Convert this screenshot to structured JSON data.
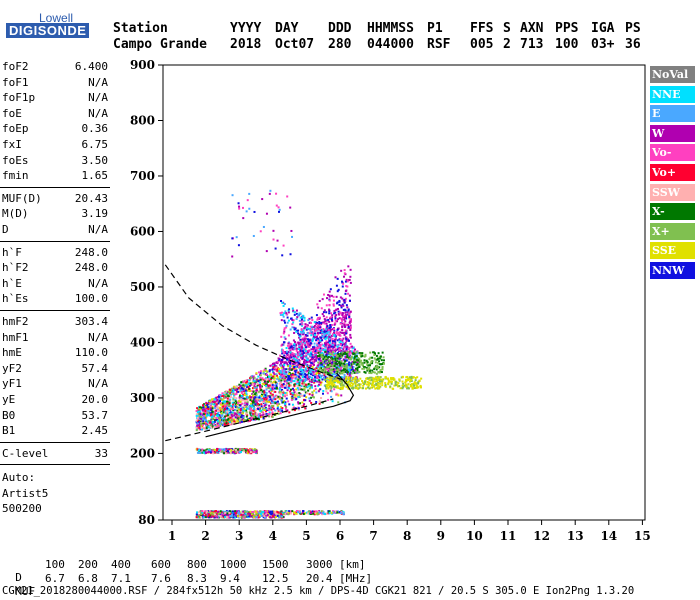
{
  "logo": {
    "brand": "Lowell",
    "product": "DIGISONDE"
  },
  "header": {
    "station_label": "Station",
    "station_name": "Campo Grande",
    "columns": [
      {
        "label": "YYYY",
        "value": "2018"
      },
      {
        "label": "DAY",
        "value": "Oct07"
      },
      {
        "label": "DDD",
        "value": "280"
      },
      {
        "label": "HHMMSS",
        "value": "044000"
      },
      {
        "label": "P1",
        "value": "RSF"
      },
      {
        "label": "FFS",
        "value": "005"
      },
      {
        "label": "S",
        "value": "2"
      },
      {
        "label": "AXN",
        "value": "713"
      },
      {
        "label": "PPS",
        "value": "100"
      },
      {
        "label": "IGA",
        "value": "03+"
      },
      {
        "label": "PS",
        "value": "36"
      }
    ]
  },
  "params_group1": [
    {
      "name": "foF2",
      "value": "6.400"
    },
    {
      "name": "foF1",
      "value": "N/A"
    },
    {
      "name": "foF1p",
      "value": "N/A"
    },
    {
      "name": "foE",
      "value": "N/A"
    },
    {
      "name": "foEp",
      "value": "0.36"
    },
    {
      "name": "fxI",
      "value": "6.75"
    },
    {
      "name": "foEs",
      "value": "3.50"
    },
    {
      "name": "fmin",
      "value": "1.65"
    }
  ],
  "params_group2": [
    {
      "name": "MUF(D)",
      "value": "20.43"
    },
    {
      "name": "M(D)",
      "value": "3.19"
    },
    {
      "name": "D",
      "value": "N/A"
    }
  ],
  "params_group3": [
    {
      "name": "h`F",
      "value": "248.0"
    },
    {
      "name": "h`F2",
      "value": "248.0"
    },
    {
      "name": "h`E",
      "value": "N/A"
    },
    {
      "name": "h`Es",
      "value": "100.0"
    }
  ],
  "params_group4": [
    {
      "name": "hmF2",
      "value": "303.4"
    },
    {
      "name": "hmF1",
      "value": "N/A"
    },
    {
      "name": "hmE",
      "value": "110.0"
    },
    {
      "name": "yF2",
      "value": "57.4"
    },
    {
      "name": "yF1",
      "value": "N/A"
    },
    {
      "name": "yE",
      "value": "20.0"
    },
    {
      "name": "B0",
      "value": "53.7"
    },
    {
      "name": "B1",
      "value": "2.45"
    }
  ],
  "params_group5": [
    {
      "name": "C-level",
      "value": "33"
    }
  ],
  "auto": {
    "label": "Auto:",
    "software": "Artist5",
    "version": "500200"
  },
  "legend": [
    {
      "label": "NoVal",
      "color": "#808080"
    },
    {
      "label": "NNE",
      "color": "#00e0ff"
    },
    {
      "label": "E",
      "color": "#4aa8ff"
    },
    {
      "label": "W",
      "color": "#b000b0"
    },
    {
      "label": "Vo-",
      "color": "#ff40c0"
    },
    {
      "label": "Vo+",
      "color": "#ff0030"
    },
    {
      "label": "SSW",
      "color": "#ffb0b0"
    },
    {
      "label": "X-",
      "color": "#007800"
    },
    {
      "label": "X+",
      "color": "#80c050"
    },
    {
      "label": "SSE",
      "color": "#e0e000"
    },
    {
      "label": "NNW",
      "color": "#1010e0"
    }
  ],
  "chart_data": {
    "type": "scatter",
    "title": "",
    "xlabel": "",
    "ylabel": "",
    "xlim": [
      0.8,
      15.2
    ],
    "ylim": [
      80,
      900
    ],
    "xticks": [
      1,
      2,
      3,
      4,
      5,
      6,
      7,
      8,
      9,
      10,
      11,
      12,
      13,
      14,
      15
    ],
    "yticks": [
      80,
      200,
      300,
      400,
      500,
      600,
      700,
      800,
      900
    ],
    "grid": false,
    "echo_clusters": [
      {
        "series": "F-layer main",
        "x_range": [
          1.7,
          8.3
        ],
        "y_range": [
          250,
          500
        ]
      },
      {
        "series": "Es trace",
        "x_range": [
          1.7,
          3.5
        ],
        "y_range": [
          200,
          210
        ]
      },
      {
        "series": "E trace",
        "x_range": [
          1.7,
          6.2
        ],
        "y_range": [
          85,
          100
        ]
      },
      {
        "series": "high scatter",
        "x_range": [
          2.7,
          4.6
        ],
        "y_range": [
          550,
          680
        ]
      }
    ],
    "curves": [
      {
        "name": "dashed-upper",
        "style": "dashed",
        "points": [
          [
            0.8,
            540
          ],
          [
            1.5,
            480
          ],
          [
            2.5,
            430
          ],
          [
            3.5,
            395
          ],
          [
            4.5,
            368
          ],
          [
            5.5,
            345
          ],
          [
            6.2,
            330
          ]
        ]
      },
      {
        "name": "dashed-lower",
        "style": "dashed",
        "points": [
          [
            0.8,
            223
          ],
          [
            2.0,
            240
          ],
          [
            3.0,
            255
          ],
          [
            4.0,
            270
          ],
          [
            5.0,
            285
          ],
          [
            5.8,
            298
          ]
        ]
      },
      {
        "name": "profile-solid",
        "style": "solid",
        "points": [
          [
            2.0,
            230
          ],
          [
            3.0,
            245
          ],
          [
            4.0,
            260
          ],
          [
            5.0,
            275
          ],
          [
            5.8,
            285
          ],
          [
            6.3,
            295
          ],
          [
            6.4,
            305
          ],
          [
            6.2,
            325
          ],
          [
            5.9,
            345
          ]
        ]
      }
    ]
  },
  "bottom": {
    "row1_label": "D",
    "row1_values": [
      "100",
      "200",
      "400",
      "600",
      "800",
      "1000",
      "1500",
      "3000"
    ],
    "row1_unit": "[km]",
    "row2_label": "MUF",
    "row2_values": [
      "6.7",
      "6.8",
      "7.1",
      "7.6",
      "8.3",
      "9.4",
      "12.5",
      "20.4"
    ],
    "row2_unit": "[MHz]",
    "footer": "CGK21_2018280044000.RSF / 284fx512h 50 kHz 2.5 km / DPS-4D CGK21 821 / 20.5 S 305.0 E Ion2Png 1.3.20"
  }
}
